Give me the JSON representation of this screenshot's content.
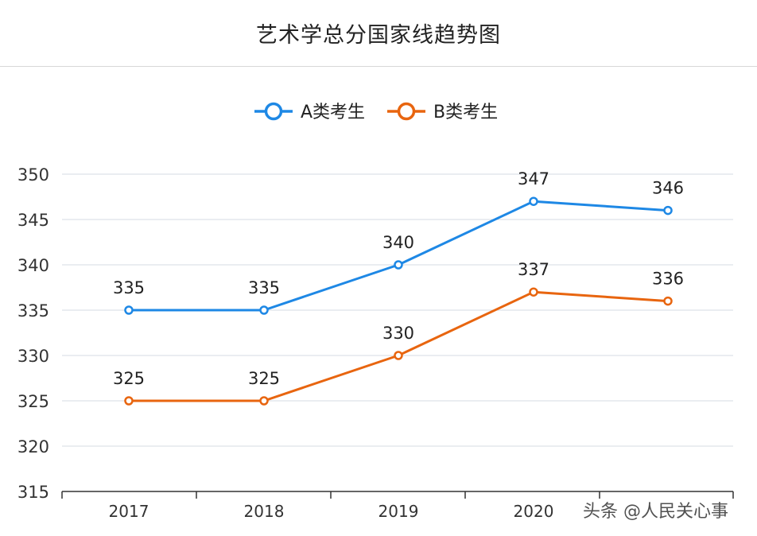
{
  "chart_data": {
    "type": "line",
    "title": "艺术学总分国家线趋势图",
    "categories": [
      "2017",
      "2018",
      "2019",
      "2020"
    ],
    "x": [
      "2017",
      "2018",
      "2019",
      "2020",
      ""
    ],
    "series": [
      {
        "name": "A类考生",
        "values": [
          335,
          335,
          340,
          347,
          346
        ],
        "color": "#1e88e5"
      },
      {
        "name": "B类考生",
        "values": [
          325,
          325,
          330,
          337,
          336
        ],
        "color": "#e8650f"
      }
    ],
    "ylim": [
      315,
      350
    ],
    "yticks": [
      315,
      320,
      325,
      330,
      335,
      340,
      345,
      350
    ],
    "grid": true,
    "legend_position": "top-center"
  },
  "watermark": "头条 @人民关心事"
}
